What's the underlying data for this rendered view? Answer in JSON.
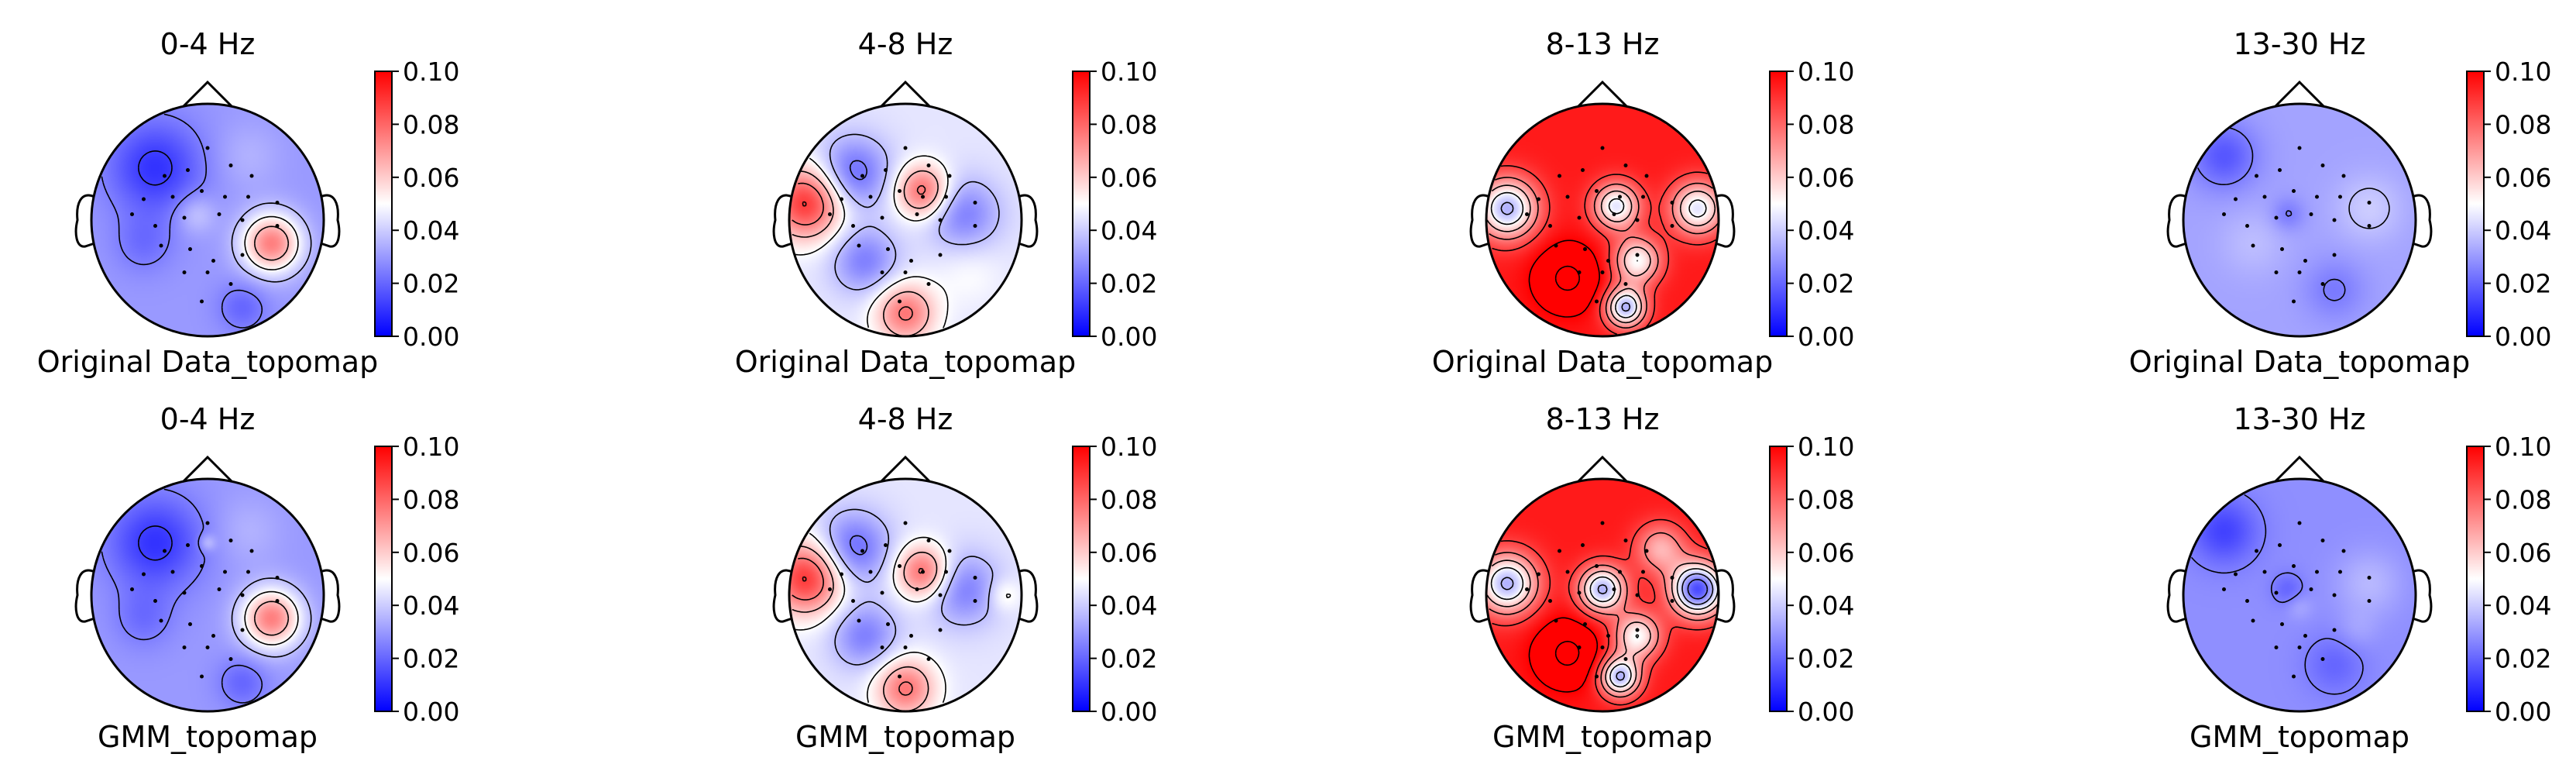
{
  "figure": {
    "colormap": "bwr",
    "colormap_low": "#0000ff",
    "colormap_mid": "#ffffff",
    "colormap_high": "#ff0000"
  },
  "chart_data": [
    {
      "type": "heatmap",
      "kind": "topomap",
      "title": "0-4 Hz",
      "xlabel": "Original Data_topomap",
      "colorbar": {
        "min": 0.0,
        "max": 0.1,
        "ticks": [
          "0.00",
          "0.02",
          "0.04",
          "0.06",
          "0.08",
          "0.10"
        ]
      },
      "sources": []
    },
    {
      "type": "heatmap",
      "kind": "topomap",
      "title": "4-8 Hz",
      "xlabel": "Original Data_topomap",
      "colorbar": {
        "min": 0.0,
        "max": 0.1,
        "ticks": [
          "0.00",
          "0.02",
          "0.04",
          "0.06",
          "0.08",
          "0.10"
        ]
      },
      "sources": []
    },
    {
      "type": "heatmap",
      "kind": "topomap",
      "title": "8-13 Hz",
      "xlabel": "Original Data_topomap",
      "colorbar": {
        "min": 0.0,
        "max": 0.1,
        "ticks": [
          "0.00",
          "0.02",
          "0.04",
          "0.06",
          "0.08",
          "0.10"
        ]
      },
      "sources": []
    },
    {
      "type": "heatmap",
      "kind": "topomap",
      "title": "13-30 Hz",
      "xlabel": "Original Data_topomap",
      "colorbar": {
        "min": 0.0,
        "max": 0.1,
        "ticks": [
          "0.00",
          "0.02",
          "0.04",
          "0.06",
          "0.08",
          "0.10"
        ]
      },
      "sources": []
    },
    {
      "type": "heatmap",
      "kind": "topomap",
      "title": "0-4 Hz",
      "xlabel": "GMM_topomap",
      "colorbar": {
        "min": 0.0,
        "max": 0.1,
        "ticks": [
          "0.00",
          "0.02",
          "0.04",
          "0.06",
          "0.08",
          "0.10"
        ]
      },
      "sources": []
    },
    {
      "type": "heatmap",
      "kind": "topomap",
      "title": "4-8 Hz",
      "xlabel": "GMM_topomap",
      "colorbar": {
        "min": 0.0,
        "max": 0.1,
        "ticks": [
          "0.00",
          "0.02",
          "0.04",
          "0.06",
          "0.08",
          "0.10"
        ]
      },
      "sources": []
    },
    {
      "type": "heatmap",
      "kind": "topomap",
      "title": "8-13 Hz",
      "xlabel": "GMM_topomap",
      "colorbar": {
        "min": 0.0,
        "max": 0.1,
        "ticks": [
          "0.00",
          "0.02",
          "0.04",
          "0.06",
          "0.08",
          "0.10"
        ]
      },
      "sources": []
    },
    {
      "type": "heatmap",
      "kind": "topomap",
      "title": "13-30 Hz",
      "xlabel": "GMM_topomap",
      "colorbar": {
        "min": 0.0,
        "max": 0.1,
        "ticks": [
          "0.00",
          "0.02",
          "0.04",
          "0.06",
          "0.08",
          "0.10"
        ]
      },
      "sources": []
    }
  ]
}
